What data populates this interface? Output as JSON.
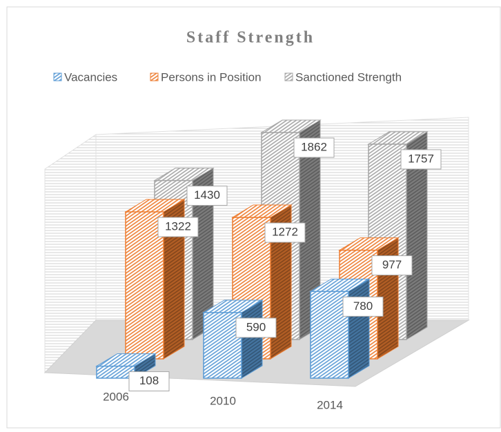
{
  "chart_data": {
    "type": "bar3d",
    "title": "Staff Strength",
    "categories": [
      "2006",
      "2010",
      "2014"
    ],
    "series": [
      {
        "name": "Vacancies",
        "color": "#5b9bd5",
        "values": [
          108,
          590,
          780
        ]
      },
      {
        "name": "Persons in Position",
        "color": "#ed7d31",
        "values": [
          1322,
          1272,
          977
        ]
      },
      {
        "name": "Sanctioned Strength",
        "color": "#a5a5a5",
        "values": [
          1430,
          1862,
          1757
        ]
      }
    ],
    "legend": "top"
  }
}
